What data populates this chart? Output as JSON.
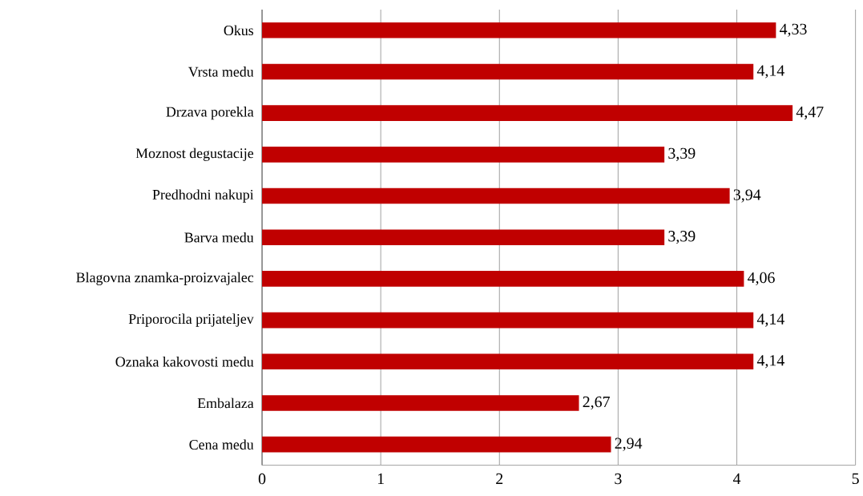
{
  "chart_data": {
    "type": "bar",
    "orientation": "horizontal",
    "categories": [
      "Okus",
      "Vrsta medu",
      "Drzava porekla",
      "Moznost degustacije",
      "Predhodni nakupi",
      "Barva medu",
      "Blagovna znamka-proizvajalec",
      "Priporocila prijateljev",
      "Oznaka kakovosti medu",
      "Embalaza",
      "Cena medu"
    ],
    "values": [
      4.33,
      4.14,
      4.47,
      3.39,
      3.94,
      3.39,
      4.06,
      4.14,
      4.14,
      2.67,
      2.94
    ],
    "value_labels": [
      "4,33",
      "4,14",
      "4,47",
      "3,39",
      "3,94",
      "3,39",
      "4,06",
      "4,14",
      "4,14",
      "2,67",
      "2,94"
    ],
    "color": "#c00000",
    "xlim": [
      0,
      5
    ],
    "xticks": [
      0,
      1,
      2,
      3,
      4,
      5
    ],
    "grid": "x"
  }
}
